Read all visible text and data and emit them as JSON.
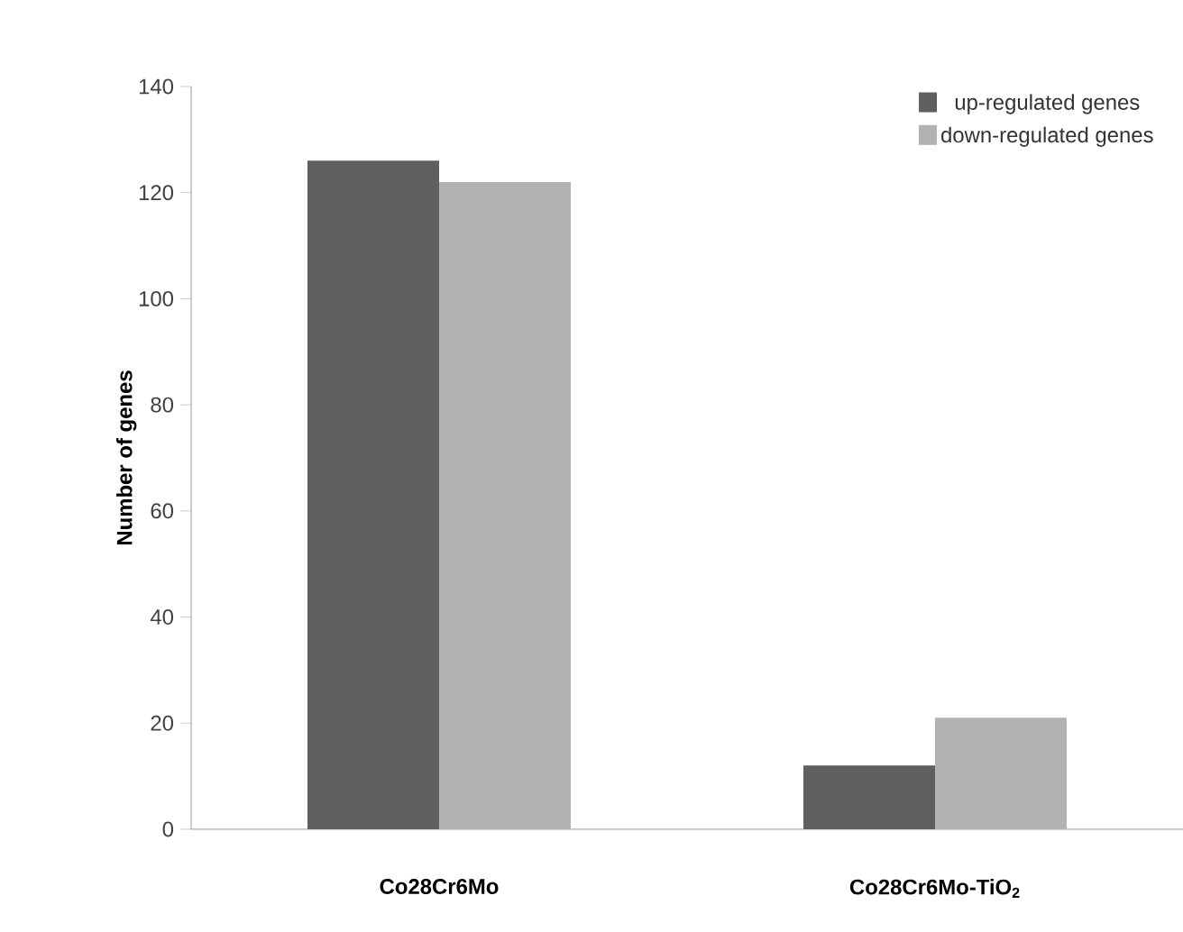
{
  "chart_data": {
    "type": "bar",
    "ylabel": "Number of genes",
    "categories": [
      "Co28Cr6Mo",
      "Co28Cr6Mo-TiO$_{2}$"
    ],
    "series": [
      {
        "name": "up-regulated genes",
        "color": "#5f5f5f",
        "values": [
          126,
          12
        ]
      },
      {
        "name": "down-regulated genes",
        "color": "#b2b2b2",
        "values": [
          122,
          21
        ]
      }
    ],
    "ylim": [
      0,
      140
    ],
    "yticks": [
      0,
      20,
      40,
      60,
      80,
      100,
      120,
      140
    ],
    "grid": false,
    "legend": "top right"
  }
}
